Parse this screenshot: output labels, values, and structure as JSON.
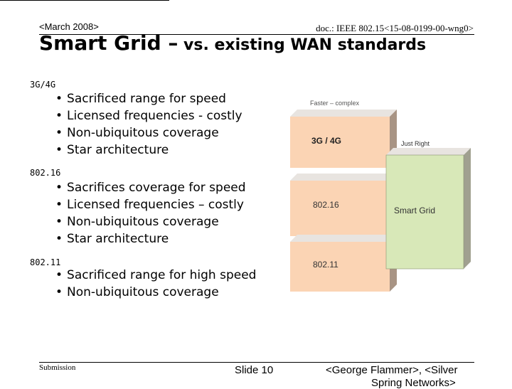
{
  "header": {
    "date": "<March 2008>",
    "doc_id": "doc.: IEEE 802.15<15-08-0199-00-wng0>"
  },
  "title": {
    "main": "Smart Grid –",
    "rest": " vs. existing WAN standards"
  },
  "sections": [
    {
      "label": "3G/4G",
      "bullets": [
        "Sacrificed range for speed",
        "Licensed frequencies - costly",
        "Non-ubiquitous coverage",
        "Star architecture"
      ]
    },
    {
      "label": "802.16",
      "bullets": [
        "Sacrifices coverage for speed",
        "Licensed frequencies – costly",
        "Non-ubiquitous coverage",
        "Star architecture"
      ]
    },
    {
      "label": "802.11",
      "bullets": [
        "Sacrificed range for high speed",
        "Non-ubiquitous coverage"
      ]
    }
  ],
  "diagram": {
    "top_label": "Faster – complex",
    "just_right": "Just Right",
    "boxes": [
      "3G / 4G",
      "802.16",
      "802.11"
    ],
    "smart_grid": "Smart Grid",
    "colors": {
      "box_face": "#fbd4b4",
      "box_side": "#a89484",
      "box_top": "#e8e4e0",
      "green_face": "#d8e8b8",
      "green_side": "#a0a090"
    }
  },
  "footer": {
    "submission": "Submission",
    "slide": "Slide 10",
    "author_line1": "<George Flammer>, <Silver",
    "author_line2": "Spring Networks>"
  }
}
